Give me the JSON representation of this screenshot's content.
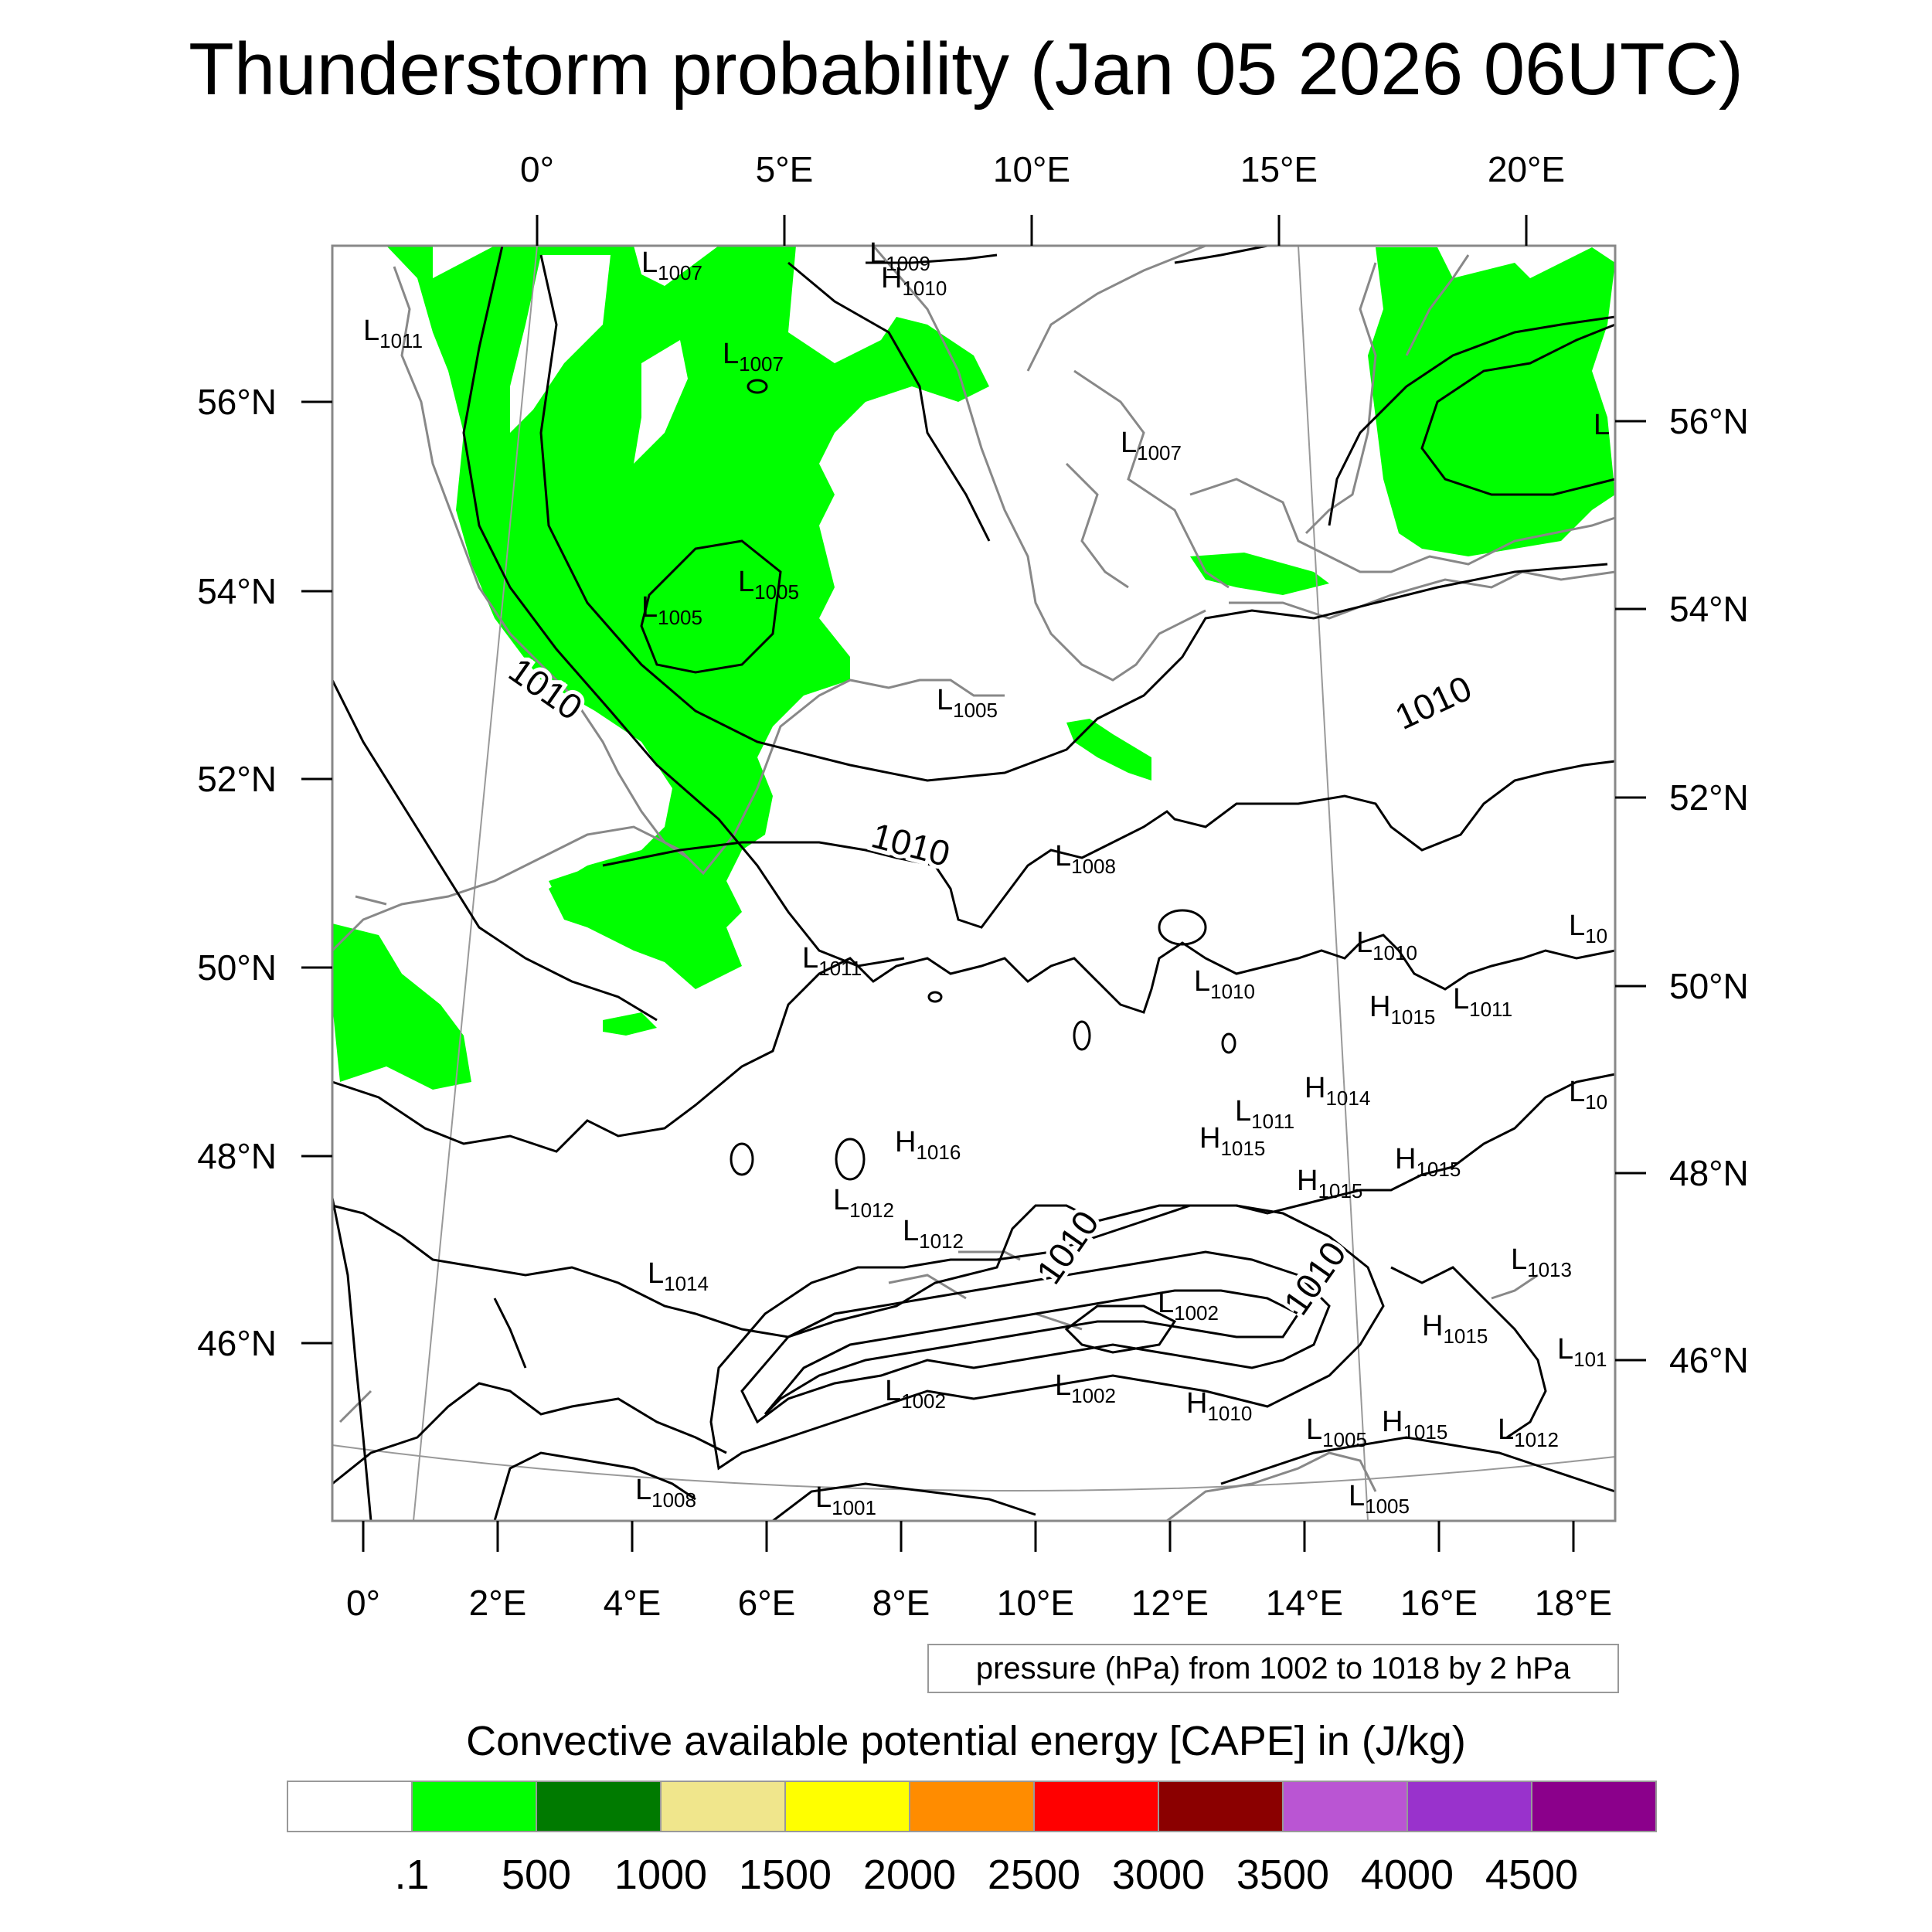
{
  "title": "Thunderstorm probability (Jan 05 2026 06UTC)",
  "top_axis_labels": [
    "0°",
    "5°E",
    "10°E",
    "15°E",
    "20°E"
  ],
  "bottom_axis_labels": [
    "0°",
    "2°E",
    "4°E",
    "6°E",
    "8°E",
    "10°E",
    "12°E",
    "14°E",
    "16°E",
    "18°E"
  ],
  "left_axis_labels": [
    "56°N",
    "54°N",
    "52°N",
    "50°N",
    "48°N",
    "46°N"
  ],
  "right_axis_labels": [
    "56°N",
    "54°N",
    "52°N",
    "50°N",
    "48°N",
    "46°N"
  ],
  "contour_info": "pressure (hPa) from 1002 to 1018 by 2 hPa",
  "colorbar": {
    "title": "Convective available potential energy [CAPE] in (J/kg)",
    "labels": [
      ".1",
      "500",
      "1000",
      "1500",
      "2000",
      "2500",
      "3000",
      "3500",
      "4000",
      "4500"
    ],
    "colors": [
      "#ffffff",
      "#00ff00",
      "#007a00",
      "#f0e68c",
      "#ffff00",
      "#ff8c00",
      "#ff0000",
      "#8b0000",
      "#ba55d3",
      "#9932cc",
      "#8b008b"
    ]
  },
  "pressure_labels": [
    {
      "letter": "L",
      "value": "1007"
    },
    {
      "letter": "L",
      "value": "1009"
    },
    {
      "letter": "H",
      "value": "1010"
    },
    {
      "letter": "L",
      "value": "1011"
    },
    {
      "letter": "L",
      "value": "1007"
    },
    {
      "letter": "L",
      "value": "1007"
    },
    {
      "letter": "L",
      "value": "1005"
    },
    {
      "letter": "L",
      "value": "1005"
    },
    {
      "letter": "L",
      "value": "1005"
    },
    {
      "letter": "L",
      "value": "1008"
    },
    {
      "letter": "L",
      "value": "1011"
    },
    {
      "letter": "L",
      "value": "1010"
    },
    {
      "letter": "L",
      "value": "1010"
    },
    {
      "letter": "H",
      "value": "1015"
    },
    {
      "letter": "L",
      "value": "1011"
    },
    {
      "letter": "H",
      "value": "1014"
    },
    {
      "letter": "L",
      "value": "1011"
    },
    {
      "letter": "H",
      "value": "1015"
    },
    {
      "letter": "H",
      "value": "1016"
    },
    {
      "letter": "H",
      "value": "1015"
    },
    {
      "letter": "H",
      "value": "1015"
    },
    {
      "letter": "L",
      "value": "1012"
    },
    {
      "letter": "L",
      "value": "1012"
    },
    {
      "letter": "L",
      "value": "1014"
    },
    {
      "letter": "L",
      "value": "1013"
    },
    {
      "letter": "L",
      "value": "1002"
    },
    {
      "letter": "H",
      "value": "1015"
    },
    {
      "letter": "L",
      "value": "1002"
    },
    {
      "letter": "L",
      "value": "1002"
    },
    {
      "letter": "H",
      "value": "1010"
    },
    {
      "letter": "H",
      "value": "1015"
    },
    {
      "letter": "L",
      "value": "1005"
    },
    {
      "letter": "L",
      "value": "1012"
    },
    {
      "letter": "L",
      "value": "1008"
    },
    {
      "letter": "L",
      "value": "1001"
    },
    {
      "letter": "L",
      "value": "1005"
    },
    {
      "letter": "L",
      "value": "10"
    },
    {
      "letter": "L",
      "value": "10"
    },
    {
      "letter": "L",
      "value": "101"
    },
    {
      "letter": "L",
      "value": ""
    }
  ],
  "contour_labels": [
    "1010",
    "1010",
    "1010",
    "1010",
    "1010"
  ]
}
